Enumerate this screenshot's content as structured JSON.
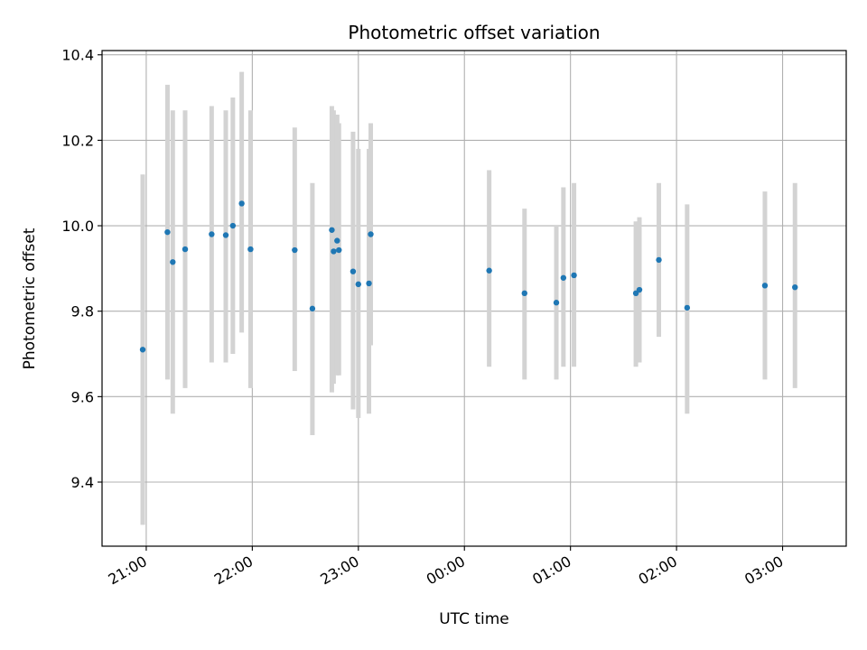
{
  "chart_data": {
    "type": "scatter",
    "title": "Photometric offset variation",
    "xlabel": "UTC time",
    "ylabel": "Photometric offset",
    "x_unit": "UTC datetime",
    "xlim": [
      "2000-01-01T20:35",
      "2000-01-02T03:36"
    ],
    "ylim": [
      9.25,
      10.41
    ],
    "grid": true,
    "legend": "none",
    "x_ticks": [
      {
        "value": "2000-01-01T21:00",
        "label": "21:00"
      },
      {
        "value": "2000-01-01T22:00",
        "label": "22:00"
      },
      {
        "value": "2000-01-01T23:00",
        "label": "23:00"
      },
      {
        "value": "2000-01-02T00:00",
        "label": "00:00"
      },
      {
        "value": "2000-01-02T01:00",
        "label": "01:00"
      },
      {
        "value": "2000-01-02T02:00",
        "label": "02:00"
      },
      {
        "value": "2000-01-02T03:00",
        "label": "03:00"
      }
    ],
    "y_ticks": [
      {
        "value": 9.4,
        "label": "9.4"
      },
      {
        "value": 9.6,
        "label": "9.6"
      },
      {
        "value": 9.8,
        "label": "9.8"
      },
      {
        "value": 10.0,
        "label": "10.0"
      },
      {
        "value": 10.2,
        "label": "10.2"
      },
      {
        "value": 10.4,
        "label": "10.4"
      }
    ],
    "marker_color": "#1f77b4",
    "errorbar_color": "#d3d3d3",
    "points": [
      {
        "x": "2000-01-01T20:58",
        "y": 9.71,
        "y_low": 9.3,
        "y_high": 10.12
      },
      {
        "x": "2000-01-01T21:12",
        "y": 9.985,
        "y_low": 9.64,
        "y_high": 10.33
      },
      {
        "x": "2000-01-01T21:15",
        "y": 9.915,
        "y_low": 9.56,
        "y_high": 10.27
      },
      {
        "x": "2000-01-01T21:22",
        "y": 9.945,
        "y_low": 9.62,
        "y_high": 10.27
      },
      {
        "x": "2000-01-01T21:37",
        "y": 9.98,
        "y_low": 9.68,
        "y_high": 10.28
      },
      {
        "x": "2000-01-01T21:45",
        "y": 9.978,
        "y_low": 9.68,
        "y_high": 10.27
      },
      {
        "x": "2000-01-01T21:49",
        "y": 10.0,
        "y_low": 9.7,
        "y_high": 10.3
      },
      {
        "x": "2000-01-01T21:54",
        "y": 10.052,
        "y_low": 9.75,
        "y_high": 10.36
      },
      {
        "x": "2000-01-01T21:59",
        "y": 9.945,
        "y_low": 9.62,
        "y_high": 10.27
      },
      {
        "x": "2000-01-01T22:24",
        "y": 9.943,
        "y_low": 9.66,
        "y_high": 10.23
      },
      {
        "x": "2000-01-01T22:34",
        "y": 9.806,
        "y_low": 9.51,
        "y_high": 10.1
      },
      {
        "x": "2000-01-01T22:45",
        "y": 9.99,
        "y_low": 9.61,
        "y_high": 10.28
      },
      {
        "x": "2000-01-01T22:46",
        "y": 9.94,
        "y_low": 9.63,
        "y_high": 10.27
      },
      {
        "x": "2000-01-01T22:48",
        "y": 9.965,
        "y_low": 9.65,
        "y_high": 10.26
      },
      {
        "x": "2000-01-01T22:49",
        "y": 9.943,
        "y_low": 9.65,
        "y_high": 10.24
      },
      {
        "x": "2000-01-01T22:57",
        "y": 9.893,
        "y_low": 9.57,
        "y_high": 10.22
      },
      {
        "x": "2000-01-01T23:00",
        "y": 9.863,
        "y_low": 9.55,
        "y_high": 10.18
      },
      {
        "x": "2000-01-01T23:06",
        "y": 9.865,
        "y_low": 9.56,
        "y_high": 10.18
      },
      {
        "x": "2000-01-01T23:07",
        "y": 9.98,
        "y_low": 9.72,
        "y_high": 10.24
      },
      {
        "x": "2000-01-02T00:14",
        "y": 9.895,
        "y_low": 9.67,
        "y_high": 10.13
      },
      {
        "x": "2000-01-02T00:34",
        "y": 9.842,
        "y_low": 9.64,
        "y_high": 10.04
      },
      {
        "x": "2000-01-02T00:52",
        "y": 9.82,
        "y_low": 9.64,
        "y_high": 10.0
      },
      {
        "x": "2000-01-02T00:56",
        "y": 9.878,
        "y_low": 9.67,
        "y_high": 10.09
      },
      {
        "x": "2000-01-02T01:02",
        "y": 9.884,
        "y_low": 9.67,
        "y_high": 10.1
      },
      {
        "x": "2000-01-02T01:37",
        "y": 9.842,
        "y_low": 9.67,
        "y_high": 10.01
      },
      {
        "x": "2000-01-02T01:39",
        "y": 9.85,
        "y_low": 9.68,
        "y_high": 10.02
      },
      {
        "x": "2000-01-02T01:50",
        "y": 9.92,
        "y_low": 9.74,
        "y_high": 10.1
      },
      {
        "x": "2000-01-02T02:06",
        "y": 9.808,
        "y_low": 9.56,
        "y_high": 10.05
      },
      {
        "x": "2000-01-02T02:50",
        "y": 9.86,
        "y_low": 9.64,
        "y_high": 10.08
      },
      {
        "x": "2000-01-02T03:07",
        "y": 9.856,
        "y_low": 9.62,
        "y_high": 10.1
      }
    ]
  }
}
